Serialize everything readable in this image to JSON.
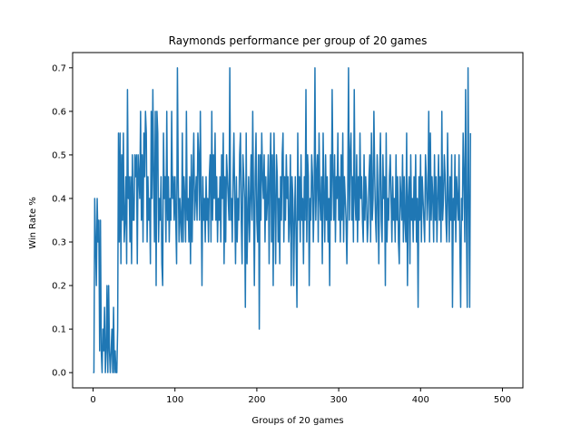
{
  "chart_data": {
    "type": "line",
    "title": "Raymonds performance per group of 20 games",
    "xlabel": "Groups of 20 games",
    "ylabel": "Win Rate %",
    "xlim": [
      -25,
      525
    ],
    "ylim": [
      -0.035,
      0.735
    ],
    "xticks": [
      0,
      100,
      200,
      300,
      400,
      500
    ],
    "xtick_labels": [
      "0",
      "100",
      "200",
      "300",
      "400",
      "500"
    ],
    "yticks": [
      0.0,
      0.1,
      0.2,
      0.3,
      0.4,
      0.5,
      0.6,
      0.7
    ],
    "ytick_labels": [
      "0.0",
      "0.1",
      "0.2",
      "0.3",
      "0.4",
      "0.5",
      "0.6",
      "0.7"
    ],
    "grid": false,
    "series_color": "#1f77b4",
    "series": [
      {
        "name": "",
        "x_start": 0,
        "x_step": 1,
        "values": [
          0.0,
          0.0,
          0.4,
          0.3,
          0.2,
          0.4,
          0.3,
          0.35,
          0.05,
          0.35,
          0.05,
          0.0,
          0.1,
          0.05,
          0.15,
          0.0,
          0.05,
          0.2,
          0.0,
          0.2,
          0.05,
          0.0,
          0.05,
          0.1,
          0.0,
          0.15,
          0.0,
          0.05,
          0.0,
          0.0,
          0.1,
          0.55,
          0.3,
          0.55,
          0.25,
          0.5,
          0.35,
          0.55,
          0.3,
          0.35,
          0.45,
          0.25,
          0.65,
          0.4,
          0.45,
          0.3,
          0.45,
          0.25,
          0.5,
          0.35,
          0.35,
          0.5,
          0.45,
          0.5,
          0.25,
          0.5,
          0.45,
          0.4,
          0.6,
          0.35,
          0.5,
          0.3,
          0.55,
          0.45,
          0.6,
          0.55,
          0.3,
          0.45,
          0.35,
          0.4,
          0.25,
          0.6,
          0.4,
          0.65,
          0.45,
          0.3,
          0.6,
          0.2,
          0.6,
          0.55,
          0.3,
          0.4,
          0.35,
          0.45,
          0.25,
          0.2,
          0.55,
          0.4,
          0.45,
          0.3,
          0.6,
          0.35,
          0.45,
          0.3,
          0.4,
          0.35,
          0.6,
          0.4,
          0.45,
          0.35,
          0.45,
          0.35,
          0.25,
          0.7,
          0.45,
          0.3,
          0.4,
          0.35,
          0.3,
          0.55,
          0.3,
          0.45,
          0.4,
          0.3,
          0.6,
          0.35,
          0.4,
          0.3,
          0.45,
          0.25,
          0.5,
          0.3,
          0.45,
          0.55,
          0.35,
          0.4,
          0.45,
          0.35,
          0.55,
          0.5,
          0.35,
          0.6,
          0.4,
          0.2,
          0.45,
          0.35,
          0.4,
          0.3,
          0.45,
          0.35,
          0.4,
          0.3,
          0.45,
          0.5,
          0.3,
          0.6,
          0.35,
          0.5,
          0.4,
          0.55,
          0.35,
          0.45,
          0.3,
          0.4,
          0.35,
          0.45,
          0.3,
          0.5,
          0.4,
          0.55,
          0.25,
          0.45,
          0.3,
          0.5,
          0.45,
          0.4,
          0.35,
          0.7,
          0.35,
          0.4,
          0.3,
          0.45,
          0.55,
          0.4,
          0.25,
          0.45,
          0.3,
          0.4,
          0.35,
          0.5,
          0.55,
          0.35,
          0.25,
          0.5,
          0.45,
          0.4,
          0.15,
          0.55,
          0.25,
          0.35,
          0.45,
          0.3,
          0.4,
          0.5,
          0.35,
          0.6,
          0.4,
          0.2,
          0.45,
          0.55,
          0.35,
          0.3,
          0.5,
          0.1,
          0.5,
          0.35,
          0.55,
          0.45,
          0.4,
          0.5,
          0.3,
          0.45,
          0.35,
          0.4,
          0.5,
          0.25,
          0.45,
          0.55,
          0.3,
          0.5,
          0.2,
          0.55,
          0.4,
          0.25,
          0.5,
          0.45,
          0.3,
          0.4,
          0.25,
          0.45,
          0.35,
          0.5,
          0.55,
          0.3,
          0.45,
          0.35,
          0.5,
          0.4,
          0.45,
          0.3,
          0.35,
          0.5,
          0.2,
          0.45,
          0.4,
          0.2,
          0.35,
          0.45,
          0.3,
          0.15,
          0.55,
          0.35,
          0.45,
          0.3,
          0.5,
          0.35,
          0.4,
          0.25,
          0.45,
          0.35,
          0.65,
          0.3,
          0.5,
          0.45,
          0.2,
          0.4,
          0.35,
          0.5,
          0.45,
          0.3,
          0.4,
          0.7,
          0.35,
          0.45,
          0.5,
          0.3,
          0.55,
          0.4,
          0.35,
          0.45,
          0.25,
          0.55,
          0.4,
          0.3,
          0.5,
          0.35,
          0.45,
          0.3,
          0.4,
          0.2,
          0.5,
          0.35,
          0.65,
          0.45,
          0.35,
          0.5,
          0.3,
          0.45,
          0.4,
          0.55,
          0.35,
          0.45,
          0.3,
          0.5,
          0.35,
          0.55,
          0.3,
          0.45,
          0.4,
          0.35,
          0.25,
          0.4,
          0.7,
          0.35,
          0.5,
          0.55,
          0.35,
          0.45,
          0.3,
          0.65,
          0.4,
          0.35,
          0.5,
          0.3,
          0.45,
          0.35,
          0.55,
          0.4,
          0.45,
          0.35,
          0.3,
          0.5,
          0.35,
          0.45,
          0.4,
          0.3,
          0.35,
          0.45,
          0.5,
          0.3,
          0.55,
          0.35,
          0.4,
          0.6,
          0.45,
          0.35,
          0.3,
          0.5,
          0.4,
          0.25,
          0.45,
          0.55,
          0.35,
          0.3,
          0.5,
          0.4,
          0.45,
          0.2,
          0.55,
          0.3,
          0.4,
          0.35,
          0.45,
          0.5,
          0.4,
          0.3,
          0.45,
          0.35,
          0.4,
          0.3,
          0.5,
          0.35,
          0.45,
          0.3,
          0.25,
          0.45,
          0.4,
          0.35,
          0.5,
          0.3,
          0.45,
          0.35,
          0.3,
          0.55,
          0.2,
          0.4,
          0.45,
          0.25,
          0.5,
          0.35,
          0.4,
          0.3,
          0.45,
          0.35,
          0.5,
          0.3,
          0.4,
          0.15,
          0.45,
          0.35,
          0.5,
          0.3,
          0.45,
          0.4,
          0.35,
          0.3,
          0.5,
          0.45,
          0.35,
          0.4,
          0.6,
          0.3,
          0.55,
          0.35,
          0.45,
          0.4,
          0.3,
          0.5,
          0.35,
          0.45,
          0.3,
          0.4,
          0.5,
          0.35,
          0.45,
          0.3,
          0.6,
          0.35,
          0.4,
          0.5,
          0.45,
          0.35,
          0.3,
          0.55,
          0.4,
          0.3,
          0.45,
          0.35,
          0.5,
          0.15,
          0.4,
          0.35,
          0.5,
          0.3,
          0.45,
          0.4,
          0.35,
          0.5,
          0.3,
          0.15,
          0.4,
          0.35,
          0.55,
          0.45,
          0.3,
          0.65,
          0.35,
          0.15,
          0.7,
          0.4,
          0.15,
          0.55
        ]
      }
    ]
  }
}
